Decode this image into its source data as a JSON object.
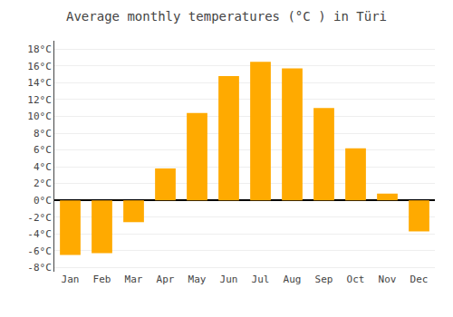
{
  "chart_data": {
    "type": "bar",
    "title": "Average monthly temperatures (°C ) in Türi",
    "categories": [
      "Jan",
      "Feb",
      "Mar",
      "Apr",
      "May",
      "Jun",
      "Jul",
      "Aug",
      "Sep",
      "Oct",
      "Nov",
      "Dec"
    ],
    "values": [
      -6.5,
      -6.3,
      -2.6,
      3.8,
      10.4,
      14.8,
      16.5,
      15.7,
      11.0,
      6.2,
      0.8,
      -3.7
    ],
    "color": "#FFAA00",
    "ylim": [
      -8.5,
      19
    ],
    "yticks": [
      {
        "value": -8,
        "label": "-8°C"
      },
      {
        "value": -6,
        "label": "-6°C"
      },
      {
        "value": -4,
        "label": "-4°C"
      },
      {
        "value": -2,
        "label": "-2°C"
      },
      {
        "value": 0,
        "label": "0°C"
      },
      {
        "value": 2,
        "label": "2°C"
      },
      {
        "value": 4,
        "label": "4°C"
      },
      {
        "value": 6,
        "label": "6°C"
      },
      {
        "value": 8,
        "label": "8°C"
      },
      {
        "value": 10,
        "label": "10°C"
      },
      {
        "value": 12,
        "label": "12°C"
      },
      {
        "value": 14,
        "label": "14°C"
      },
      {
        "value": 16,
        "label": "16°C"
      },
      {
        "value": 18,
        "label": "18°C"
      }
    ],
    "grid": true
  }
}
